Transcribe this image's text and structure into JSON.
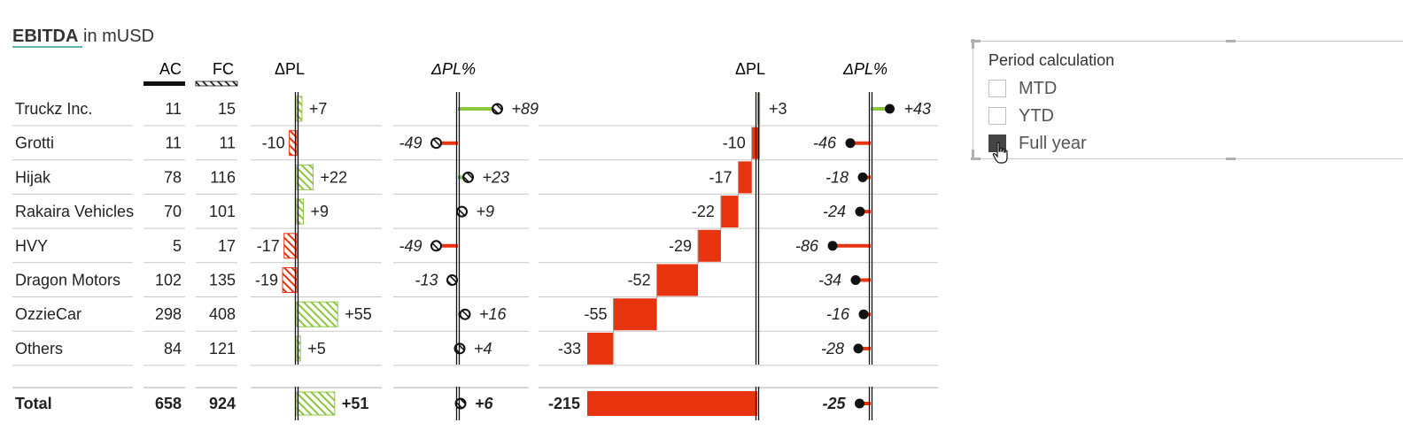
{
  "title": {
    "bold": "EBITDA",
    "rest": " in mUSD"
  },
  "headers": {
    "ac": "AC",
    "fc": "FC",
    "dpl": "ΔPL",
    "dplpct": "ΔPL%",
    "dpl_wf": "ΔPL",
    "dplpct_2": "ΔPL%"
  },
  "chart_data": {
    "type": "table",
    "rows": [
      {
        "name": "Truckz Inc.",
        "ac": "11",
        "fc": "15",
        "dpl": "+7",
        "dplpct": "+89",
        "wf": "+3",
        "wfpct": "+43"
      },
      {
        "name": "Grotti",
        "ac": "11",
        "fc": "11",
        "dpl": "-10",
        "dplpct": "-49",
        "wf": "-10",
        "wfpct": "-46"
      },
      {
        "name": "Hijak",
        "ac": "78",
        "fc": "116",
        "dpl": "+22",
        "dplpct": "+23",
        "wf": "-17",
        "wfpct": "-18"
      },
      {
        "name": "Rakaira Vehicles",
        "ac": "70",
        "fc": "101",
        "dpl": "+9",
        "dplpct": "+9",
        "wf": "-22",
        "wfpct": "-24"
      },
      {
        "name": "HVY",
        "ac": "5",
        "fc": "17",
        "dpl": "-17",
        "dplpct": "-49",
        "wf": "-29",
        "wfpct": "-86"
      },
      {
        "name": "Dragon Motors",
        "ac": "102",
        "fc": "135",
        "dpl": "-19",
        "dplpct": "-13",
        "wf": "-52",
        "wfpct": "-34"
      },
      {
        "name": "OzzieCar",
        "ac": "298",
        "fc": "408",
        "dpl": "+55",
        "dplpct": "+16",
        "wf": "-55",
        "wfpct": "-16"
      },
      {
        "name": "Others",
        "ac": "84",
        "fc": "121",
        "dpl": "+5",
        "dplpct": "+4",
        "wf": "-33",
        "wfpct": "-28"
      }
    ],
    "total": {
      "name": "Total",
      "ac": "658",
      "fc": "924",
      "dpl": "+51",
      "dplpct": "+6",
      "wf": "-215",
      "wfpct": "-25"
    }
  },
  "slicer": {
    "title": "Period calculation",
    "options": [
      {
        "label": "MTD",
        "checked": false
      },
      {
        "label": "YTD",
        "checked": false
      },
      {
        "label": "Full year",
        "checked": true
      }
    ]
  },
  "colors": {
    "positive": "#8cc63f",
    "negative": "#e8340e",
    "text": "#222222",
    "grid": "#c8c8c8",
    "axis": "#111111"
  }
}
